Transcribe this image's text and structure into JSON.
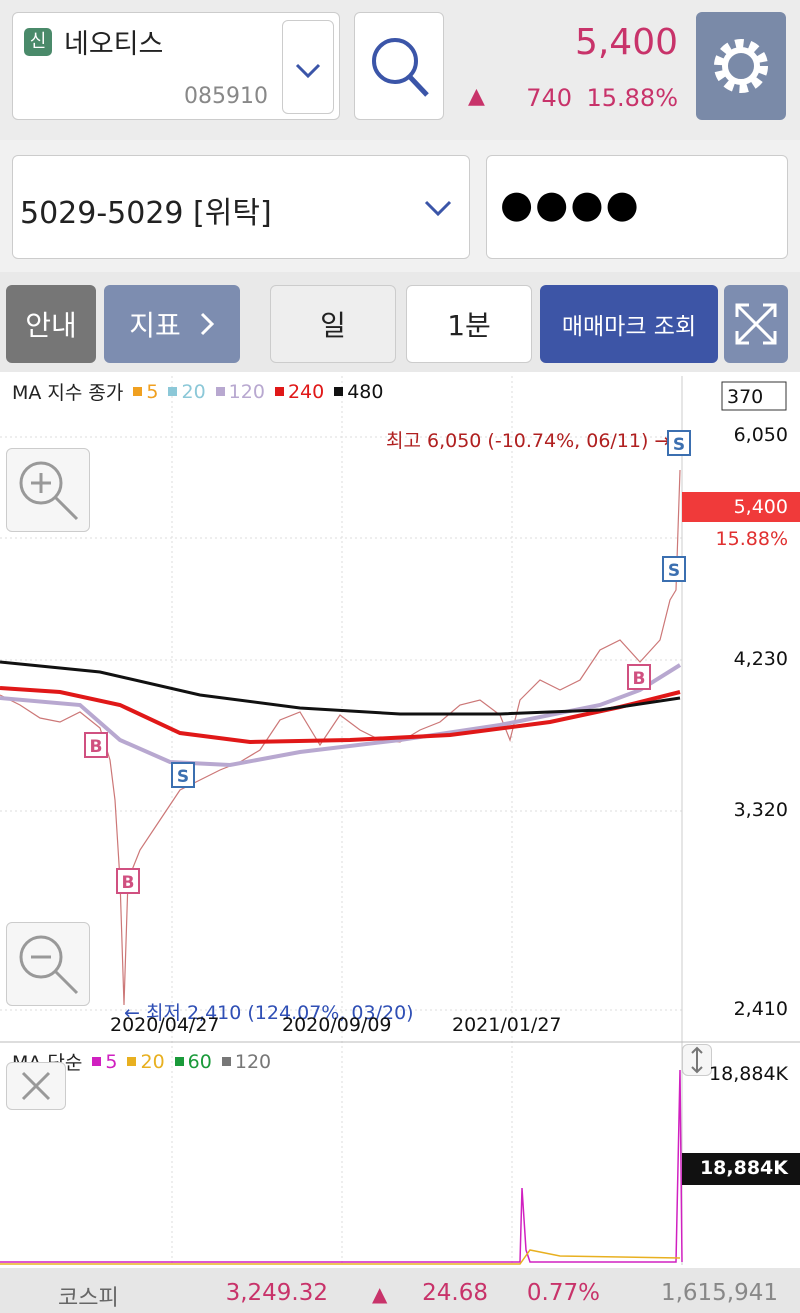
{
  "header": {
    "badge": "신",
    "stock_name": "네오티스",
    "stock_code": "085910",
    "price": "5,400",
    "change_arrow": "▲",
    "change": "740",
    "change_pct": "15.88%"
  },
  "account": {
    "account": "5029-5029 [위탁]",
    "password": "●●●●"
  },
  "toolbar": {
    "info": "안내",
    "indicator": "지표",
    "period": "일",
    "interval": "1분",
    "trade_mark": "매매마크 조회"
  },
  "price_chart": {
    "legend_title": "MA 지수 종가",
    "legend": [
      {
        "label": "5",
        "color": "#f0a020"
      },
      {
        "label": "20",
        "color": "#8cc8d8"
      },
      {
        "label": "120",
        "color": "#b8a8d0"
      },
      {
        "label": "240",
        "color": "#e01818"
      },
      {
        "label": "480",
        "color": "#111111"
      }
    ],
    "count": "370",
    "y_labels": [
      "6,050",
      "4,230",
      "3,320",
      "2,410"
    ],
    "current_price": "5,400",
    "current_pct": "15.88%",
    "high_note": "최고 6,050 (-10.74%, 06/11) →",
    "low_note": "← 최저 2,410 (124.07%, 03/20)",
    "x_labels": [
      "2020/04/27",
      "2020/09/09",
      "2021/01/27"
    ],
    "markers": [
      "B",
      "S",
      "B",
      "S",
      "S",
      "B"
    ]
  },
  "volume_chart": {
    "legend_title": "MA 단순",
    "legend": [
      {
        "label": "5",
        "color": "#d020c0"
      },
      {
        "label": "20",
        "color": "#e8b020"
      },
      {
        "label": "60",
        "color": "#1a9a3a"
      },
      {
        "label": "120",
        "color": "#777777"
      }
    ],
    "top_label": "18,884K",
    "current_label": "18,884K"
  },
  "footer": {
    "index_name": "코스피",
    "index_value": "3,249.32",
    "arrow": "▲",
    "change": "24.68",
    "change_pct": "0.77%",
    "volume": "1,615,941"
  }
}
